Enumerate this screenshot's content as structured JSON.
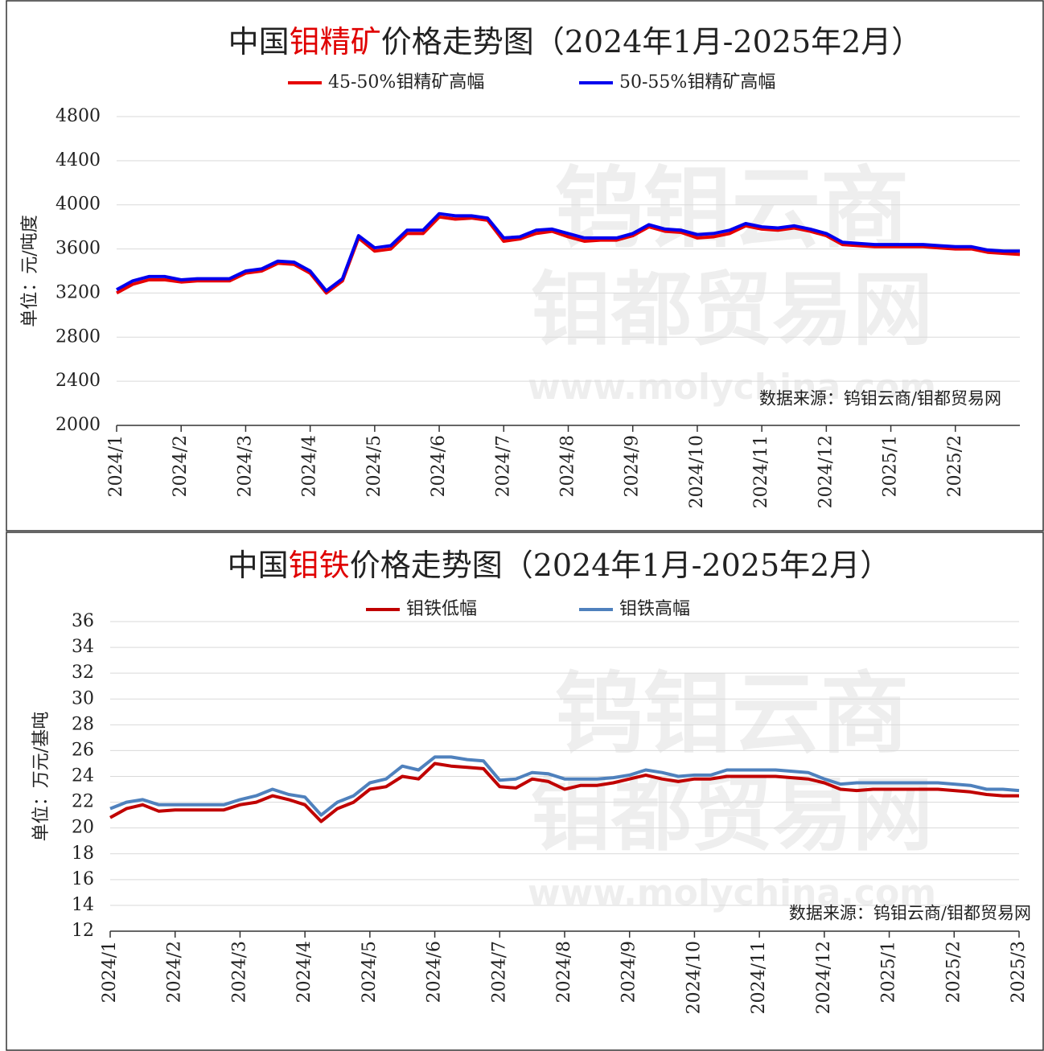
{
  "chart_data": [
    {
      "type": "line",
      "title": [
        "中国",
        "钼精矿",
        "价格走势图（2024年1月-2025年2月）"
      ],
      "title_highlight_color": "#e00000",
      "ylabel": "单位：元/吨度",
      "source": "数据来源：钨钼云商/钼都贸易网",
      "watermark": [
        "钨钼云商",
        "钼都贸易网",
        "www.molychina.com"
      ],
      "categories": [
        "2024/1",
        null,
        null,
        null,
        "2024/2",
        null,
        null,
        null,
        "2024/3",
        null,
        null,
        null,
        "2024/4",
        null,
        null,
        null,
        "2024/5",
        null,
        null,
        null,
        "2024/6",
        null,
        null,
        null,
        "2024/7",
        null,
        null,
        null,
        "2024/8",
        null,
        null,
        null,
        "2024/9",
        null,
        null,
        null,
        "2024/10",
        null,
        null,
        null,
        "2024/11",
        null,
        null,
        null,
        "2024/12",
        null,
        null,
        null,
        "2025/1",
        null,
        null,
        null,
        "2025/2",
        null,
        null,
        null,
        null
      ],
      "ylim": [
        2000,
        4800
      ],
      "yticks": [
        2000,
        2400,
        2800,
        3200,
        3600,
        4000,
        4400,
        4800
      ],
      "grid": true,
      "series": [
        {
          "name": "45-50%钼精矿高幅",
          "color": "#e60000",
          "values": [
            3200,
            3280,
            3320,
            3320,
            3300,
            3310,
            3310,
            3310,
            3380,
            3400,
            3470,
            3460,
            3380,
            3200,
            3310,
            3700,
            3580,
            3600,
            3740,
            3740,
            3890,
            3870,
            3880,
            3860,
            3670,
            3690,
            3740,
            3760,
            3710,
            3670,
            3680,
            3680,
            3720,
            3800,
            3760,
            3750,
            3700,
            3710,
            3740,
            3810,
            3780,
            3770,
            3790,
            3760,
            3720,
            3640,
            3630,
            3620,
            3620,
            3620,
            3620,
            3610,
            3600,
            3600,
            3570,
            3560,
            3550
          ]
        },
        {
          "name": "50-55%钼精矿高幅",
          "color": "#0000ee",
          "values": [
            3230,
            3310,
            3350,
            3350,
            3320,
            3330,
            3330,
            3330,
            3400,
            3420,
            3490,
            3480,
            3400,
            3220,
            3330,
            3720,
            3610,
            3630,
            3770,
            3770,
            3920,
            3900,
            3900,
            3880,
            3700,
            3710,
            3770,
            3780,
            3740,
            3700,
            3700,
            3700,
            3740,
            3820,
            3780,
            3770,
            3730,
            3740,
            3770,
            3830,
            3800,
            3790,
            3810,
            3780,
            3740,
            3660,
            3650,
            3640,
            3640,
            3640,
            3640,
            3630,
            3620,
            3620,
            3590,
            3580,
            3580
          ]
        }
      ]
    },
    {
      "type": "line",
      "title": [
        "中国",
        "钼铁",
        "价格走势图（2024年1月-2025年2月）"
      ],
      "title_highlight_color": "#e00000",
      "ylabel": "单位：万元/基吨",
      "source": "数据来源：钨钼云商/钼都贸易网",
      "watermark": [
        "钨钼云商",
        "钼都贸易网",
        "www.molychina.com"
      ],
      "categories": [
        "2024/1",
        null,
        null,
        null,
        "2024/2",
        null,
        null,
        null,
        "2024/3",
        null,
        null,
        null,
        "2024/4",
        null,
        null,
        null,
        "2024/5",
        null,
        null,
        null,
        "2024/6",
        null,
        null,
        null,
        "2024/7",
        null,
        null,
        null,
        "2024/8",
        null,
        null,
        null,
        "2024/9",
        null,
        null,
        null,
        "2024/10",
        null,
        null,
        null,
        "2024/11",
        null,
        null,
        null,
        "2024/12",
        null,
        null,
        null,
        "2025/1",
        null,
        null,
        null,
        "2025/2",
        null,
        null,
        null,
        "2025/3"
      ],
      "ylim": [
        12,
        36
      ],
      "yticks": [
        12,
        14,
        16,
        18,
        20,
        22,
        24,
        26,
        28,
        30,
        32,
        34,
        36
      ],
      "grid": true,
      "series": [
        {
          "name": "钼铁低幅",
          "color": "#c00000",
          "values": [
            20.8,
            21.5,
            21.8,
            21.3,
            21.4,
            21.4,
            21.4,
            21.4,
            21.8,
            22.0,
            22.5,
            22.2,
            21.8,
            20.5,
            21.5,
            22.0,
            23.0,
            23.2,
            24.0,
            23.8,
            25.0,
            24.8,
            24.7,
            24.6,
            23.2,
            23.1,
            23.8,
            23.6,
            23.0,
            23.3,
            23.3,
            23.5,
            23.8,
            24.1,
            23.8,
            23.6,
            23.8,
            23.8,
            24.0,
            24.0,
            24.0,
            24.0,
            23.9,
            23.8,
            23.5,
            23.0,
            22.9,
            23.0,
            23.0,
            23.0,
            23.0,
            23.0,
            22.9,
            22.8,
            22.6,
            22.5,
            22.5
          ]
        },
        {
          "name": "钼铁高幅",
          "color": "#4f81bd",
          "values": [
            21.5,
            22.0,
            22.2,
            21.8,
            21.8,
            21.8,
            21.8,
            21.8,
            22.2,
            22.5,
            23.0,
            22.6,
            22.4,
            21.0,
            22.0,
            22.5,
            23.5,
            23.8,
            24.8,
            24.5,
            25.5,
            25.5,
            25.3,
            25.2,
            23.7,
            23.8,
            24.3,
            24.2,
            23.8,
            23.8,
            23.8,
            23.9,
            24.1,
            24.5,
            24.3,
            24.0,
            24.1,
            24.1,
            24.5,
            24.5,
            24.5,
            24.5,
            24.4,
            24.3,
            23.8,
            23.4,
            23.5,
            23.5,
            23.5,
            23.5,
            23.5,
            23.5,
            23.4,
            23.3,
            23.0,
            23.0,
            22.9
          ]
        }
      ]
    }
  ]
}
